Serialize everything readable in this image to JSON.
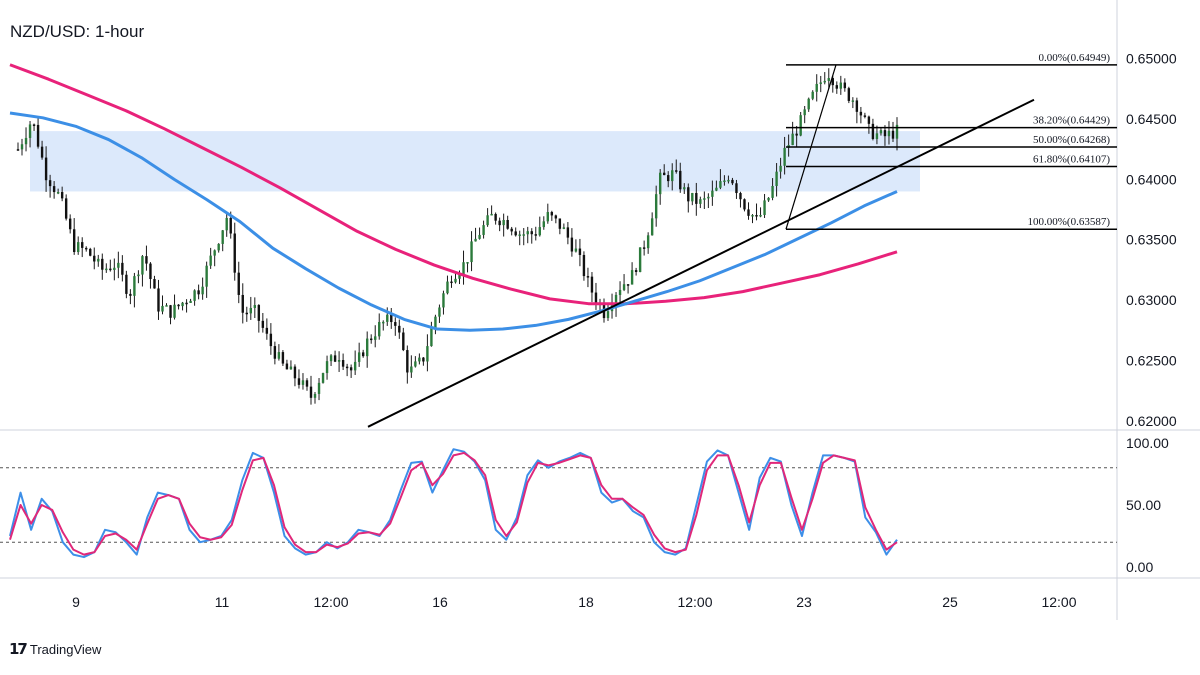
{
  "title": "NZD/USD: 1-hour",
  "watermark": "TradingView",
  "colors": {
    "zone": "#dce9fb",
    "ma_short": "#3c8fe6",
    "ma_long": "#e8227a",
    "stoch_k": "#3d8fe8",
    "stoch_d": "#e0287a",
    "candle": "#1a1a1a",
    "grid": "#cfd3dc"
  },
  "chart_data": {
    "type": "candlestick",
    "symbol": "NZD/USD",
    "timeframe": "1-hour",
    "price_axis": {
      "ticks": [
        "0.65000",
        "0.64500",
        "0.64000",
        "0.63500",
        "0.63000",
        "0.62500",
        "0.62000"
      ],
      "range": [
        0.6194,
        0.6542
      ]
    },
    "time_axis": {
      "ticks": [
        "9",
        "11",
        "12:00",
        "16",
        "18",
        "12:00",
        "23",
        "25",
        "12:00"
      ]
    },
    "resistance_zone": {
      "low": 0.639,
      "high": 0.644
    },
    "trendline": {
      "from": 0.6195,
      "to": 0.6466
    },
    "price_path": [
      0.6425,
      0.645,
      0.6405,
      0.6385,
      0.6345,
      0.634,
      0.6325,
      0.633,
      0.6305,
      0.634,
      0.6295,
      0.629,
      0.63,
      0.631,
      0.634,
      0.637,
      0.629,
      0.629,
      0.6265,
      0.6245,
      0.6235,
      0.622,
      0.6245,
      0.6255,
      0.624,
      0.6265,
      0.628,
      0.6285,
      0.624,
      0.625,
      0.629,
      0.632,
      0.633,
      0.6355,
      0.637,
      0.6365,
      0.6355,
      0.6355,
      0.637,
      0.636,
      0.634,
      0.631,
      0.629,
      0.631,
      0.632,
      0.635,
      0.64,
      0.6405,
      0.6385,
      0.638,
      0.639,
      0.6405,
      0.638,
      0.6365,
      0.639,
      0.6425,
      0.6445,
      0.647,
      0.649,
      0.6475,
      0.6465,
      0.644,
      0.6435,
      0.644
    ],
    "ma_short": [
      0.6455,
      0.6451,
      0.6444,
      0.6433,
      0.6418,
      0.64,
      0.6383,
      0.6365,
      0.6343,
      0.6326,
      0.631,
      0.6296,
      0.6284,
      0.6276,
      0.6275,
      0.6276,
      0.6279,
      0.6284,
      0.6291,
      0.6299,
      0.6307,
      0.6316,
      0.6327,
      0.6338,
      0.6351,
      0.6364,
      0.6378,
      0.639
    ],
    "ma_long": [
      0.6495,
      0.6483,
      0.647,
      0.6457,
      0.6442,
      0.6426,
      0.641,
      0.6393,
      0.6375,
      0.6357,
      0.6342,
      0.6329,
      0.6318,
      0.6309,
      0.6301,
      0.6297,
      0.6297,
      0.6299,
      0.6302,
      0.6307,
      0.6314,
      0.6321,
      0.633,
      0.634
    ],
    "fibonacci": [
      {
        "label": "0.00%(0.64949)",
        "level": 0.64949
      },
      {
        "label": "38.20%(0.64429)",
        "level": 0.64429
      },
      {
        "label": "50.00%(0.64268)",
        "level": 0.64268
      },
      {
        "label": "61.80%(0.64107)",
        "level": 0.64107
      },
      {
        "label": "100.00%(0.63587)",
        "level": 0.63587
      }
    ],
    "stochastic": {
      "ticks": [
        "100.00",
        "50.00",
        "0.00"
      ],
      "overbought": 80,
      "oversold": 20,
      "k": [
        25,
        60,
        30,
        55,
        45,
        20,
        10,
        8,
        12,
        30,
        28,
        20,
        10,
        40,
        60,
        58,
        55,
        30,
        20,
        22,
        25,
        38,
        70,
        92,
        88,
        60,
        25,
        15,
        10,
        12,
        20,
        15,
        20,
        30,
        28,
        25,
        38,
        62,
        84,
        85,
        60,
        78,
        95,
        93,
        85,
        70,
        30,
        22,
        40,
        74,
        86,
        80,
        85,
        88,
        92,
        88,
        60,
        52,
        55,
        45,
        40,
        20,
        12,
        10,
        15,
        50,
        85,
        94,
        90,
        60,
        30,
        72,
        88,
        85,
        50,
        25,
        60,
        90,
        90,
        88,
        85,
        40,
        28,
        10,
        22
      ],
      "d": [
        22,
        50,
        35,
        50,
        46,
        28,
        14,
        10,
        12,
        25,
        27,
        22,
        14,
        35,
        55,
        58,
        55,
        35,
        24,
        22,
        24,
        34,
        62,
        86,
        88,
        66,
        32,
        18,
        12,
        12,
        18,
        16,
        19,
        27,
        28,
        26,
        35,
        56,
        78,
        84,
        66,
        75,
        90,
        92,
        86,
        74,
        38,
        25,
        36,
        68,
        84,
        82,
        84,
        87,
        90,
        88,
        66,
        55,
        55,
        48,
        42,
        26,
        15,
        12,
        14,
        42,
        78,
        90,
        90,
        66,
        36,
        66,
        84,
        84,
        56,
        30,
        55,
        84,
        90,
        88,
        86,
        48,
        30,
        14,
        20
      ]
    }
  }
}
